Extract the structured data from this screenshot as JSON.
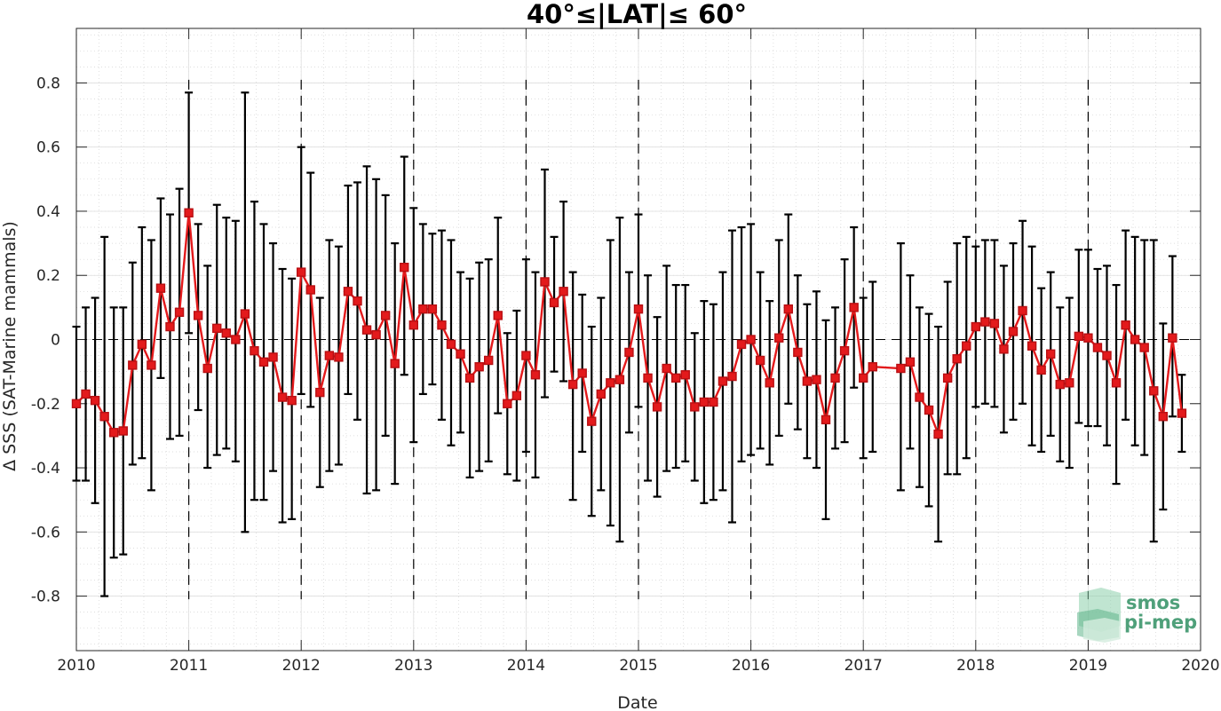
{
  "chart_data": {
    "type": "line",
    "title": "40°≤|LAT|≤ 60°",
    "xlabel": "Date",
    "ylabel": "Δ SSS (SAT-Marine mammals)",
    "xlim": [
      2010,
      2020
    ],
    "ylim": [
      -0.97,
      0.97
    ],
    "x_ticks": [
      "2010",
      "2011",
      "2012",
      "2013",
      "2014",
      "2015",
      "2016",
      "2017",
      "2018",
      "2019",
      "2020"
    ],
    "y_ticks": [
      "-0.8",
      "-0.6",
      "-0.4",
      "-0.2",
      "0",
      "0.2",
      "0.4",
      "0.6",
      "0.8"
    ],
    "grid": true,
    "reference_line_y": 0,
    "year_boundaries_dashed": [
      2011,
      2012,
      2013,
      2014,
      2015,
      2016,
      2017,
      2018,
      2019
    ],
    "series": [
      {
        "color": "#e31a1c",
        "errorbar_color": "#000000",
        "marker": "square",
        "points": [
          {
            "x": "2010-01",
            "y": -0.2,
            "lo": -0.44,
            "hi": 0.04
          },
          {
            "x": "2010-02",
            "y": -0.17,
            "lo": -0.44,
            "hi": 0.1
          },
          {
            "x": "2010-03",
            "y": -0.19,
            "lo": -0.51,
            "hi": 0.13
          },
          {
            "x": "2010-04",
            "y": -0.24,
            "lo": -0.8,
            "hi": 0.32
          },
          {
            "x": "2010-05",
            "y": -0.29,
            "lo": -0.68,
            "hi": 0.1
          },
          {
            "x": "2010-06",
            "y": -0.285,
            "lo": -0.67,
            "hi": 0.1
          },
          {
            "x": "2010-07",
            "y": -0.08,
            "lo": -0.39,
            "hi": 0.24
          },
          {
            "x": "2010-08",
            "y": -0.015,
            "lo": -0.37,
            "hi": 0.35
          },
          {
            "x": "2010-09",
            "y": -0.08,
            "lo": -0.47,
            "hi": 0.31
          },
          {
            "x": "2010-10",
            "y": 0.16,
            "lo": -0.12,
            "hi": 0.44
          },
          {
            "x": "2010-11",
            "y": 0.04,
            "lo": -0.31,
            "hi": 0.39
          },
          {
            "x": "2010-12",
            "y": 0.085,
            "lo": -0.3,
            "hi": 0.47
          },
          {
            "x": "2011-01",
            "y": 0.395,
            "lo": 0.02,
            "hi": 0.77
          },
          {
            "x": "2011-02",
            "y": 0.075,
            "lo": -0.22,
            "hi": 0.36
          },
          {
            "x": "2011-03",
            "y": -0.09,
            "lo": -0.4,
            "hi": 0.23
          },
          {
            "x": "2011-04",
            "y": 0.035,
            "lo": -0.36,
            "hi": 0.42
          },
          {
            "x": "2011-05",
            "y": 0.02,
            "lo": -0.34,
            "hi": 0.38
          },
          {
            "x": "2011-06",
            "y": 0.0,
            "lo": -0.38,
            "hi": 0.37
          },
          {
            "x": "2011-07",
            "y": 0.08,
            "lo": -0.6,
            "hi": 0.77
          },
          {
            "x": "2011-08",
            "y": -0.035,
            "lo": -0.5,
            "hi": 0.43
          },
          {
            "x": "2011-09",
            "y": -0.07,
            "lo": -0.5,
            "hi": 0.36
          },
          {
            "x": "2011-10",
            "y": -0.055,
            "lo": -0.41,
            "hi": 0.3
          },
          {
            "x": "2011-11",
            "y": -0.18,
            "lo": -0.57,
            "hi": 0.22
          },
          {
            "x": "2011-12",
            "y": -0.19,
            "lo": -0.56,
            "hi": 0.19
          },
          {
            "x": "2012-01",
            "y": 0.21,
            "lo": -0.17,
            "hi": 0.6
          },
          {
            "x": "2012-02",
            "y": 0.155,
            "lo": -0.21,
            "hi": 0.52
          },
          {
            "x": "2012-03",
            "y": -0.165,
            "lo": -0.46,
            "hi": 0.13
          },
          {
            "x": "2012-04",
            "y": -0.05,
            "lo": -0.41,
            "hi": 0.31
          },
          {
            "x": "2012-05",
            "y": -0.055,
            "lo": -0.39,
            "hi": 0.29
          },
          {
            "x": "2012-06",
            "y": 0.15,
            "lo": -0.17,
            "hi": 0.48
          },
          {
            "x": "2012-07",
            "y": 0.12,
            "lo": -0.25,
            "hi": 0.49
          },
          {
            "x": "2012-08",
            "y": 0.03,
            "lo": -0.48,
            "hi": 0.54
          },
          {
            "x": "2012-09",
            "y": 0.015,
            "lo": -0.47,
            "hi": 0.5
          },
          {
            "x": "2012-10",
            "y": 0.075,
            "lo": -0.3,
            "hi": 0.45
          },
          {
            "x": "2012-11",
            "y": -0.075,
            "lo": -0.45,
            "hi": 0.3
          },
          {
            "x": "2012-12",
            "y": 0.225,
            "lo": -0.11,
            "hi": 0.57
          },
          {
            "x": "2013-01",
            "y": 0.045,
            "lo": -0.32,
            "hi": 0.41
          },
          {
            "x": "2013-02",
            "y": 0.095,
            "lo": -0.17,
            "hi": 0.36
          },
          {
            "x": "2013-03",
            "y": 0.095,
            "lo": -0.14,
            "hi": 0.33
          },
          {
            "x": "2013-04",
            "y": 0.045,
            "lo": -0.25,
            "hi": 0.34
          },
          {
            "x": "2013-05",
            "y": -0.015,
            "lo": -0.33,
            "hi": 0.31
          },
          {
            "x": "2013-06",
            "y": -0.045,
            "lo": -0.29,
            "hi": 0.21
          },
          {
            "x": "2013-07",
            "y": -0.12,
            "lo": -0.43,
            "hi": 0.19
          },
          {
            "x": "2013-08",
            "y": -0.085,
            "lo": -0.41,
            "hi": 0.24
          },
          {
            "x": "2013-09",
            "y": -0.065,
            "lo": -0.38,
            "hi": 0.25
          },
          {
            "x": "2013-10",
            "y": 0.075,
            "lo": -0.23,
            "hi": 0.38
          },
          {
            "x": "2013-11",
            "y": -0.2,
            "lo": -0.42,
            "hi": 0.02
          },
          {
            "x": "2013-12",
            "y": -0.175,
            "lo": -0.44,
            "hi": 0.09
          },
          {
            "x": "2014-01",
            "y": -0.05,
            "lo": -0.35,
            "hi": 0.25
          },
          {
            "x": "2014-02",
            "y": -0.11,
            "lo": -0.43,
            "hi": 0.21
          },
          {
            "x": "2014-03",
            "y": 0.18,
            "lo": -0.18,
            "hi": 0.53
          },
          {
            "x": "2014-04",
            "y": 0.115,
            "lo": -0.1,
            "hi": 0.32
          },
          {
            "x": "2014-05",
            "y": 0.15,
            "lo": -0.13,
            "hi": 0.43
          },
          {
            "x": "2014-06",
            "y": -0.14,
            "lo": -0.5,
            "hi": 0.21
          },
          {
            "x": "2014-07",
            "y": -0.105,
            "lo": -0.35,
            "hi": 0.14
          },
          {
            "x": "2014-08",
            "y": -0.255,
            "lo": -0.55,
            "hi": 0.04
          },
          {
            "x": "2014-09",
            "y": -0.17,
            "lo": -0.47,
            "hi": 0.13
          },
          {
            "x": "2014-10",
            "y": -0.135,
            "lo": -0.58,
            "hi": 0.31
          },
          {
            "x": "2014-11",
            "y": -0.125,
            "lo": -0.63,
            "hi": 0.38
          },
          {
            "x": "2014-12",
            "y": -0.04,
            "lo": -0.29,
            "hi": 0.21
          },
          {
            "x": "2015-01",
            "y": 0.095,
            "lo": -0.21,
            "hi": 0.39
          },
          {
            "x": "2015-02",
            "y": -0.12,
            "lo": -0.44,
            "hi": 0.2
          },
          {
            "x": "2015-03",
            "y": -0.21,
            "lo": -0.49,
            "hi": 0.07
          },
          {
            "x": "2015-04",
            "y": -0.09,
            "lo": -0.41,
            "hi": 0.23
          },
          {
            "x": "2015-05",
            "y": -0.12,
            "lo": -0.4,
            "hi": 0.17
          },
          {
            "x": "2015-06",
            "y": -0.11,
            "lo": -0.38,
            "hi": 0.17
          },
          {
            "x": "2015-07",
            "y": -0.21,
            "lo": -0.44,
            "hi": 0.02
          },
          {
            "x": "2015-08",
            "y": -0.195,
            "lo": -0.51,
            "hi": 0.12
          },
          {
            "x": "2015-09",
            "y": -0.195,
            "lo": -0.5,
            "hi": 0.11
          },
          {
            "x": "2015-10",
            "y": -0.13,
            "lo": -0.47,
            "hi": 0.21
          },
          {
            "x": "2015-11",
            "y": -0.115,
            "lo": -0.57,
            "hi": 0.34
          },
          {
            "x": "2015-12",
            "y": -0.015,
            "lo": -0.38,
            "hi": 0.35
          },
          {
            "x": "2016-01",
            "y": 0.0,
            "lo": -0.36,
            "hi": 0.36
          },
          {
            "x": "2016-02",
            "y": -0.065,
            "lo": -0.34,
            "hi": 0.21
          },
          {
            "x": "2016-03",
            "y": -0.135,
            "lo": -0.39,
            "hi": 0.12
          },
          {
            "x": "2016-04",
            "y": 0.005,
            "lo": -0.3,
            "hi": 0.31
          },
          {
            "x": "2016-05",
            "y": 0.095,
            "lo": -0.2,
            "hi": 0.39
          },
          {
            "x": "2016-06",
            "y": -0.04,
            "lo": -0.28,
            "hi": 0.2
          },
          {
            "x": "2016-07",
            "y": -0.13,
            "lo": -0.37,
            "hi": 0.11
          },
          {
            "x": "2016-08",
            "y": -0.125,
            "lo": -0.4,
            "hi": 0.15
          },
          {
            "x": "2016-09",
            "y": -0.25,
            "lo": -0.56,
            "hi": 0.06
          },
          {
            "x": "2016-10",
            "y": -0.12,
            "lo": -0.34,
            "hi": 0.1
          },
          {
            "x": "2016-11",
            "y": -0.035,
            "lo": -0.32,
            "hi": 0.25
          },
          {
            "x": "2016-12",
            "y": 0.1,
            "lo": -0.15,
            "hi": 0.35
          },
          {
            "x": "2017-01",
            "y": -0.12,
            "lo": -0.37,
            "hi": 0.13
          },
          {
            "x": "2017-02",
            "y": -0.085,
            "lo": -0.35,
            "hi": 0.18
          },
          {
            "x": "2017-05",
            "y": -0.09,
            "lo": -0.47,
            "hi": 0.3
          },
          {
            "x": "2017-06",
            "y": -0.07,
            "lo": -0.34,
            "hi": 0.2
          },
          {
            "x": "2017-07",
            "y": -0.18,
            "lo": -0.46,
            "hi": 0.1
          },
          {
            "x": "2017-08",
            "y": -0.22,
            "lo": -0.52,
            "hi": 0.08
          },
          {
            "x": "2017-09",
            "y": -0.295,
            "lo": -0.63,
            "hi": 0.04
          },
          {
            "x": "2017-10",
            "y": -0.12,
            "lo": -0.42,
            "hi": 0.18
          },
          {
            "x": "2017-11",
            "y": -0.06,
            "lo": -0.42,
            "hi": 0.3
          },
          {
            "x": "2017-12",
            "y": -0.02,
            "lo": -0.37,
            "hi": 0.32
          },
          {
            "x": "2018-01",
            "y": 0.04,
            "lo": -0.21,
            "hi": 0.29
          },
          {
            "x": "2018-02",
            "y": 0.055,
            "lo": -0.2,
            "hi": 0.31
          },
          {
            "x": "2018-03",
            "y": 0.05,
            "lo": -0.21,
            "hi": 0.31
          },
          {
            "x": "2018-04",
            "y": -0.03,
            "lo": -0.29,
            "hi": 0.23
          },
          {
            "x": "2018-05",
            "y": 0.025,
            "lo": -0.25,
            "hi": 0.3
          },
          {
            "x": "2018-06",
            "y": 0.09,
            "lo": -0.2,
            "hi": 0.37
          },
          {
            "x": "2018-07",
            "y": -0.02,
            "lo": -0.33,
            "hi": 0.29
          },
          {
            "x": "2018-08",
            "y": -0.095,
            "lo": -0.35,
            "hi": 0.16
          },
          {
            "x": "2018-09",
            "y": -0.045,
            "lo": -0.3,
            "hi": 0.21
          },
          {
            "x": "2018-10",
            "y": -0.14,
            "lo": -0.38,
            "hi": 0.1
          },
          {
            "x": "2018-11",
            "y": -0.135,
            "lo": -0.4,
            "hi": 0.13
          },
          {
            "x": "2018-12",
            "y": 0.01,
            "lo": -0.26,
            "hi": 0.28
          },
          {
            "x": "2019-01",
            "y": 0.005,
            "lo": -0.27,
            "hi": 0.28
          },
          {
            "x": "2019-02",
            "y": -0.025,
            "lo": -0.27,
            "hi": 0.22
          },
          {
            "x": "2019-03",
            "y": -0.05,
            "lo": -0.33,
            "hi": 0.23
          },
          {
            "x": "2019-04",
            "y": -0.135,
            "lo": -0.45,
            "hi": 0.17
          },
          {
            "x": "2019-05",
            "y": 0.045,
            "lo": -0.25,
            "hi": 0.34
          },
          {
            "x": "2019-06",
            "y": 0.0,
            "lo": -0.33,
            "hi": 0.32
          },
          {
            "x": "2019-07",
            "y": -0.025,
            "lo": -0.36,
            "hi": 0.31
          },
          {
            "x": "2019-08",
            "y": -0.16,
            "lo": -0.63,
            "hi": 0.31
          },
          {
            "x": "2019-09",
            "y": -0.24,
            "lo": -0.53,
            "hi": 0.05
          },
          {
            "x": "2019-10",
            "y": 0.005,
            "lo": -0.24,
            "hi": 0.26
          },
          {
            "x": "2019-11",
            "y": -0.23,
            "lo": -0.35,
            "hi": -0.11
          }
        ]
      }
    ]
  },
  "logo": {
    "line1": "smos",
    "line2": "pi-mep",
    "color": "#4fa07a"
  }
}
